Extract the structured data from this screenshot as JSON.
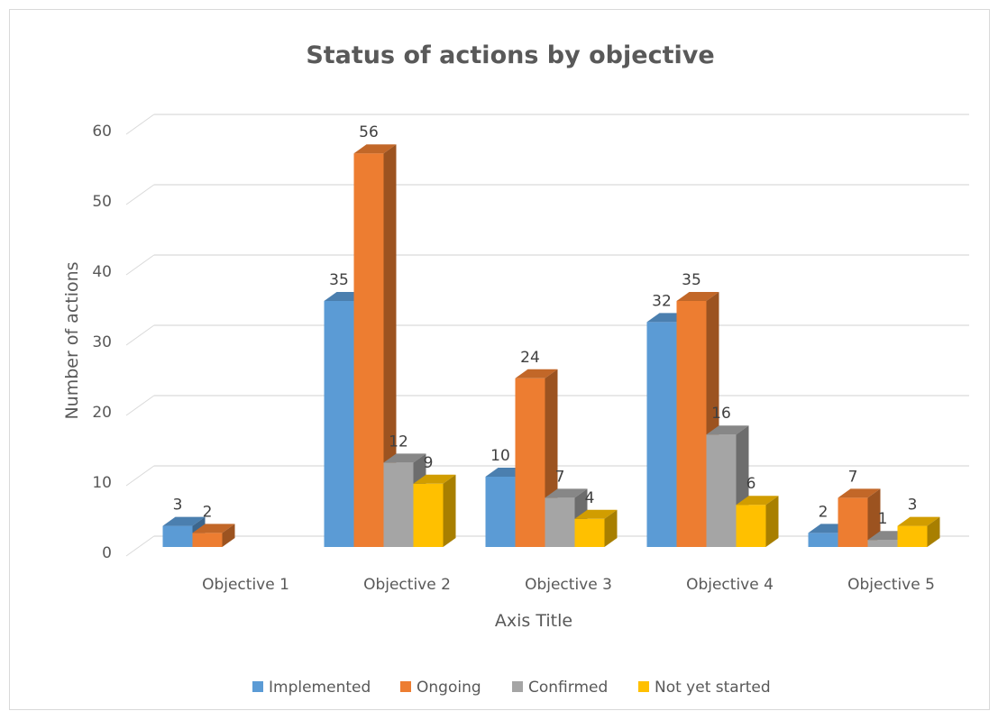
{
  "chart_data": {
    "type": "bar",
    "title": "Status of actions by objective",
    "xlabel": "Axis Title",
    "ylabel": "Number of actions",
    "ylim": [
      0,
      60
    ],
    "yticks": [
      0,
      10,
      20,
      30,
      40,
      50,
      60
    ],
    "grid": true,
    "legend_position": "bottom",
    "three_d": true,
    "categories": [
      "Objective 1",
      "Objective 2",
      "Objective 3",
      "Objective 4",
      "Objective 5"
    ],
    "series": [
      {
        "name": "Implemented",
        "color": "#5b9bd5",
        "values": [
          3,
          35,
          10,
          32,
          2
        ]
      },
      {
        "name": "Ongoing",
        "color": "#ed7d31",
        "values": [
          2,
          56,
          24,
          35,
          7
        ]
      },
      {
        "name": "Confirmed",
        "color": "#a5a5a5",
        "values": [
          null,
          12,
          7,
          16,
          1
        ]
      },
      {
        "name": "Not yet started",
        "color": "#ffc000",
        "values": [
          null,
          9,
          4,
          6,
          3
        ]
      }
    ]
  }
}
